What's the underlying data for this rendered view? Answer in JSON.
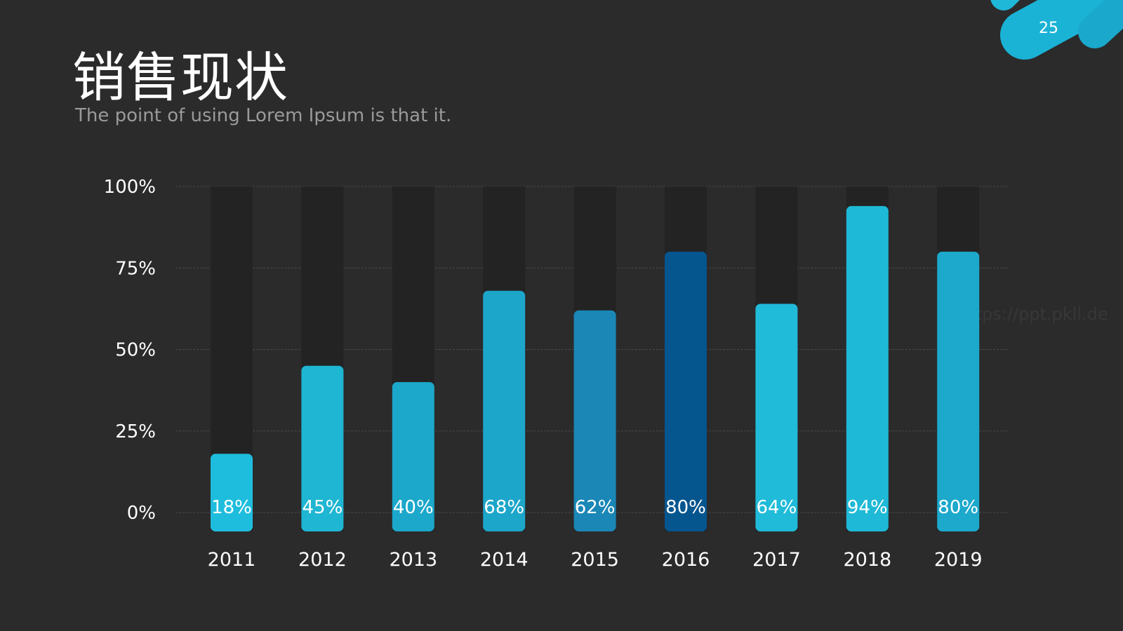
{
  "slide": {
    "page_number": "25",
    "title": "销售现状",
    "subtitle": "The point of using Lorem Ipsum is that it.",
    "watermark": "https://ppt.pkll.de"
  },
  "colors": {
    "background": "#2b2b2c",
    "track": "#232324",
    "gridline": "#4a4a4a",
    "accent": "#1fb8d8",
    "highlight": "#05558f"
  },
  "chart_data": {
    "type": "bar",
    "categories": [
      "2011",
      "2012",
      "2013",
      "2014",
      "2015",
      "2016",
      "2017",
      "2018",
      "2019"
    ],
    "values": [
      18,
      45,
      40,
      68,
      62,
      80,
      64,
      94,
      80
    ],
    "value_labels": [
      "18%",
      "45%",
      "40%",
      "68%",
      "62%",
      "80%",
      "64%",
      "94%",
      "80%"
    ],
    "bar_colors": [
      "#1fbddd",
      "#1eb6d3",
      "#1ba8cb",
      "#1ca6ca",
      "#1a87b6",
      "#05558f",
      "#1fbbd8",
      "#1eb9d6",
      "#1ca9cb"
    ],
    "yticks": [
      "0%",
      "25%",
      "50%",
      "75%",
      "100%"
    ],
    "ylim": [
      0,
      100
    ],
    "background_track": true,
    "grid": true,
    "title": "",
    "xlabel": "",
    "ylabel": ""
  }
}
